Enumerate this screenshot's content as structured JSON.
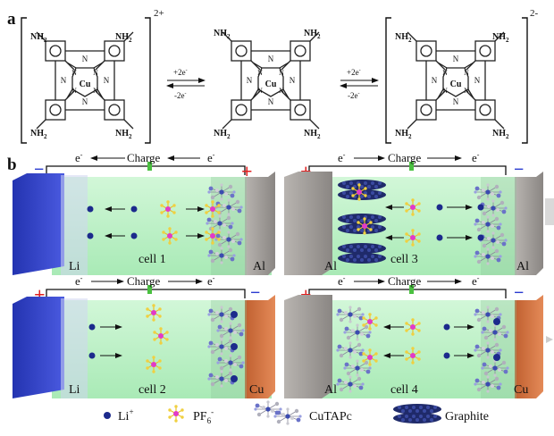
{
  "panel_a": {
    "label": "a",
    "molecule_left": {
      "center": "Cu",
      "charge": "2+",
      "substituent": "NH",
      "subscript": "2"
    },
    "molecule_mid": {
      "center": "Cu",
      "substituent": "NH",
      "subscript": "2"
    },
    "molecule_right": {
      "center": "Cu",
      "charge": "2-",
      "substituent": "NH",
      "subscript": "2"
    },
    "arrow1": {
      "forward": "+2e",
      "forward_sup": "-",
      "backward": "-2e",
      "backward_sup": "-"
    },
    "arrow2": {
      "forward": "+2e",
      "forward_sup": "-",
      "backward": "-2e",
      "backward_sup": "-"
    }
  },
  "panel_b": {
    "label": "b",
    "charge_text": "Charge",
    "electron": "e",
    "electron_sup": "-",
    "cells": [
      {
        "name": "cell 1",
        "left_electrode": "Li",
        "right_electrode": "Al",
        "plus": "+",
        "minus": "−"
      },
      {
        "name": "cell 3",
        "left_electrode": "Al",
        "right_electrode": "Al",
        "plus": "+",
        "minus": "−"
      },
      {
        "name": "cell 2",
        "left_electrode": "Li",
        "right_electrode": "Cu",
        "plus": "+",
        "minus": "−"
      },
      {
        "name": "cell 4",
        "left_electrode": "Al",
        "right_electrode": "Cu",
        "plus": "+",
        "minus": "−"
      }
    ]
  },
  "legend": {
    "li": {
      "text": "Li",
      "sup": "+"
    },
    "pf6": {
      "text": "PF",
      "sub": "6",
      "sup": "-"
    },
    "cutapc": {
      "text": "CuTAPc"
    },
    "graphite": {
      "text": "Graphite"
    }
  },
  "colors": {
    "electrolyte": "#b8f0c4",
    "li_electrode": "#2f3fc4",
    "al_electrode": "#9a9693",
    "cu_electrode": "#d8784a",
    "li_ion": "#1c2a8c",
    "pf6_center": "#e23ac8",
    "pf6_arm": "#e8c22a",
    "plus": "#e02020",
    "minus": "#2a3bd0",
    "graphite": "#1f2a6a"
  }
}
